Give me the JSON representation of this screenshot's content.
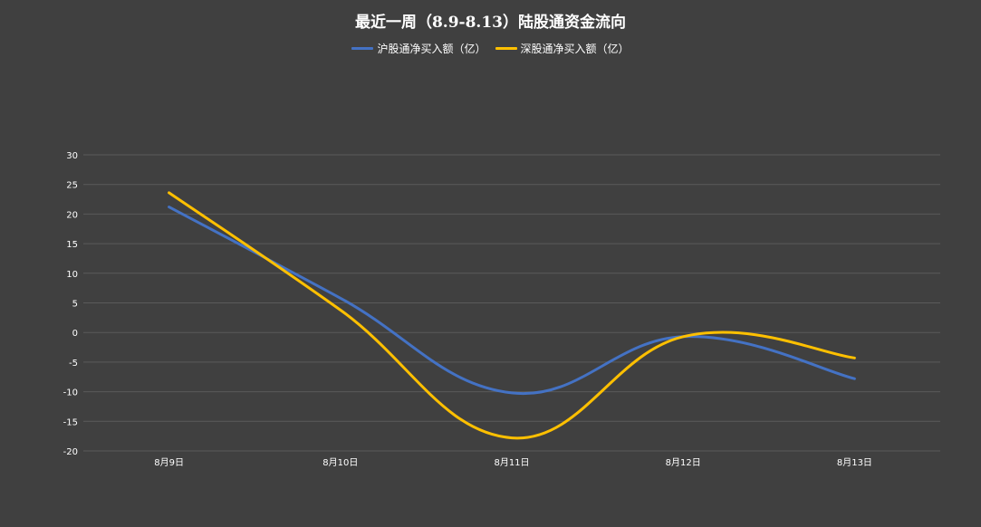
{
  "chart_data": {
    "type": "line",
    "title": "最近一周（8.9-8.13）陆股通资金流向",
    "categories": [
      "8月9日",
      "8月10日",
      "8月11日",
      "8月12日",
      "8月13日"
    ],
    "series": [
      {
        "name": "沪股通净买入额（亿）",
        "color": "#4472C4",
        "values": [
          21.2,
          5.8,
          -10.2,
          -0.7,
          -7.8
        ]
      },
      {
        "name": "深股通净买入额（亿）",
        "color": "#FFC000",
        "values": [
          23.6,
          3.8,
          -17.8,
          -0.7,
          -4.3
        ]
      }
    ],
    "ylim": [
      -20,
      30
    ],
    "yticks": [
      30,
      25,
      20,
      15,
      10,
      5,
      0,
      -5,
      -10,
      -15,
      -20
    ],
    "xlabel": "",
    "ylabel": "",
    "grid": true,
    "legend_position": "top",
    "smooth": true
  }
}
